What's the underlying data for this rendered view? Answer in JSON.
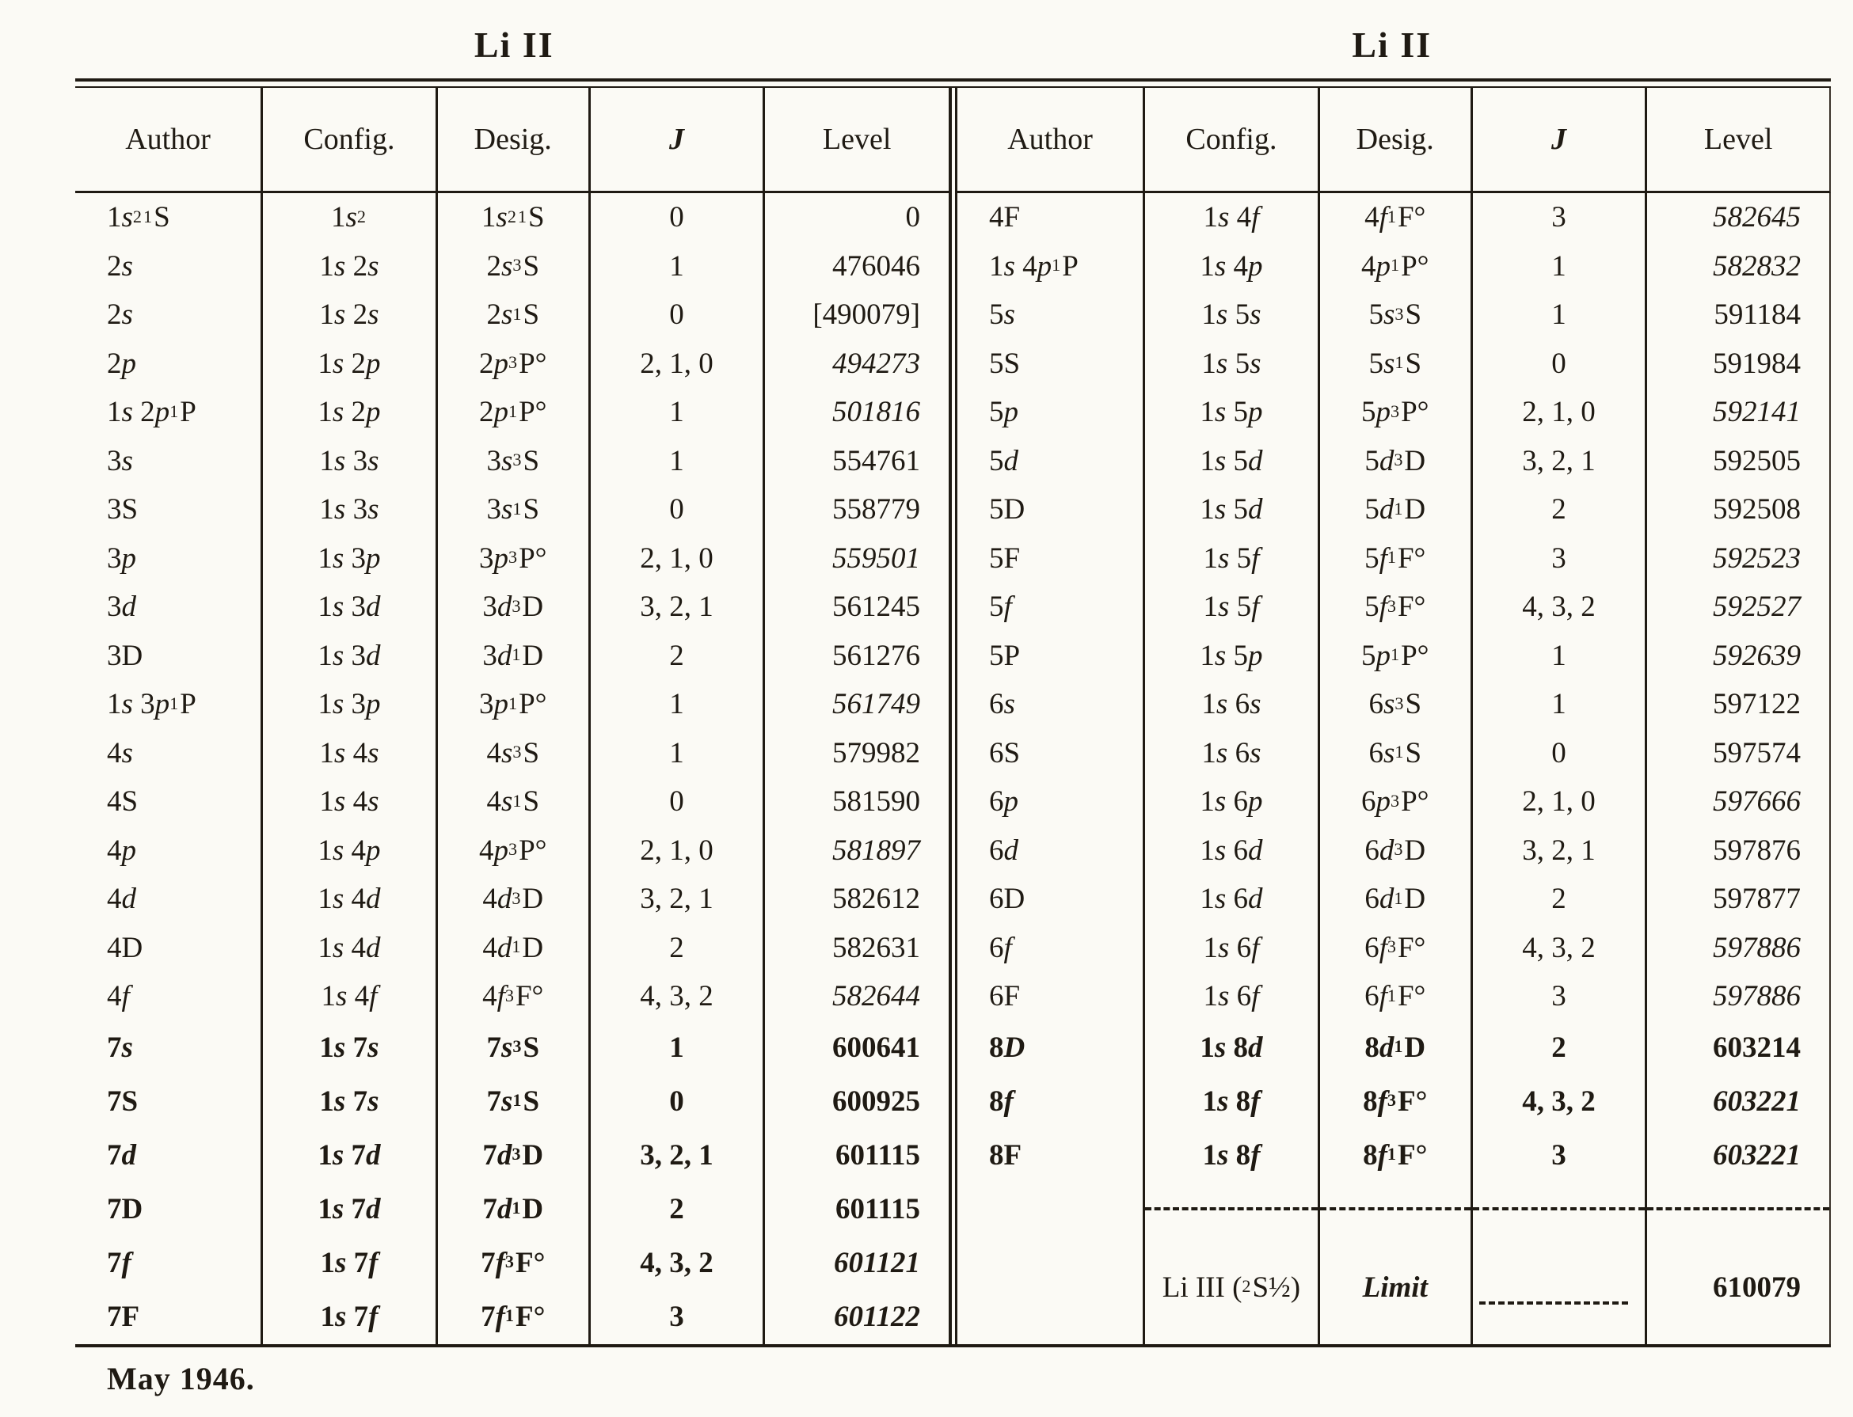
{
  "headers": [
    "Author",
    "Config.",
    "Desig.",
    "J",
    "Level"
  ],
  "tables": [
    {
      "title": "Li II",
      "rows": [
        [
          "1*s*^2^ ^1^S",
          "1*s*^2^",
          "1*s*^2^  ^1^S",
          "0",
          "0"
        ],
        [
          "2*s*",
          "1*s* 2*s*",
          "2*s*  ^3^S",
          "1",
          "476046"
        ],
        [
          "2*s*",
          "1*s* 2*s*",
          "2*s*  ^1^S",
          "0",
          "[490079]"
        ],
        [
          "2*p*",
          "1*s* 2*p*",
          "2*p*  ^3^P°",
          "2, 1, 0",
          "*494273*"
        ],
        [
          "1*s* 2*p* ^1^P",
          "1*s* 2*p*",
          "2*p*  ^1^P°",
          "1",
          "*501816*"
        ],
        [
          "3*s*",
          "1*s* 3*s*",
          "3*s*  ^3^S",
          "1",
          "554761"
        ],
        [
          "3S",
          "1*s* 3*s*",
          "3*s*  ^1^S",
          "0",
          "558779"
        ],
        [
          "3*p*",
          "1*s* 3*p*",
          "3*p*  ^3^P°",
          "2, 1, 0",
          "*559501*"
        ],
        [
          "3*d*",
          "1*s* 3*d*",
          "3*d*  ^3^D",
          "3, 2, 1",
          "561245"
        ],
        [
          "3D",
          "1*s* 3*d*",
          "3*d*  ^1^D",
          "2",
          "561276"
        ],
        [
          "1*s* 3*p* ^1^P",
          "1*s* 3*p*",
          "3*p*  ^1^P°",
          "1",
          "*561749*"
        ],
        [
          "4*s*",
          "1*s* 4*s*",
          "4*s*  ^3^S",
          "1",
          "579982"
        ],
        [
          "4S",
          "1*s* 4*s*",
          "4*s*  ^1^S",
          "0",
          "581590"
        ],
        [
          "4*p*",
          "1*s* 4*p*",
          "4*p*  ^3^P°",
          "2, 1, 0",
          "*581897*"
        ],
        [
          "4*d*",
          "1*s* 4*d*",
          "4*d*  ^3^D",
          "3, 2, 1",
          "582612"
        ],
        [
          "4D",
          "1*s* 4*d*",
          "4*d*  ^1^D",
          "2",
          "582631"
        ],
        [
          "4*f*",
          "1*s* 4*f*",
          "4*f*  ^3^F°",
          "4, 3, 2",
          "*582644*"
        ]
      ],
      "bold_rows": [
        [
          "7*s*",
          "1*s* 7*s*",
          "7*s*  ^3^S",
          "1",
          "600641"
        ],
        [
          "7S",
          "1*s* 7*s*",
          "7*s*  ^1^S",
          "0",
          "600925"
        ],
        [
          "7*d*",
          "1*s* 7*d*",
          "7*d*  ^3^D",
          "3, 2, 1",
          "601115"
        ],
        [
          "7D",
          "1*s* 7*d*",
          "7*d*  ^1^D",
          "2",
          "601115"
        ],
        [
          "7*f*",
          "1*s* 7*f*",
          "7*f*  ^3^F°",
          "4, 3, 2",
          "*601121*"
        ],
        [
          "7F",
          "1*s* 7*f*",
          "7*f*  ^1^F°",
          "3",
          "*601122*"
        ]
      ],
      "limit": null
    },
    {
      "title": "Li II",
      "rows": [
        [
          "4F",
          "1*s* 4*f*",
          "4*f*  ^1^F°",
          "3",
          "*582645*"
        ],
        [
          "1*s* 4*p* ^1^P",
          "1*s* 4*p*",
          "4*p*  ^1^P°",
          "1",
          "*582832*"
        ],
        [
          "5*s*",
          "1*s* 5*s*",
          "5*s*  ^3^S",
          "1",
          "591184"
        ],
        [
          "5S",
          "1*s* 5*s*",
          "5*s*  ^1^S",
          "0",
          "591984"
        ],
        [
          "5*p*",
          "1*s* 5*p*",
          "5*p*  ^3^P°",
          "2, 1, 0",
          "*592141*"
        ],
        [
          "5*d*",
          "1*s* 5*d*",
          "5*d*  ^3^D",
          "3, 2, 1",
          "592505"
        ],
        [
          "5D",
          "1*s* 5*d*",
          "5*d*  ^1^D",
          "2",
          "592508"
        ],
        [
          "5F",
          "1*s* 5*f*",
          "5*f*  ^1^F°",
          "3",
          "*592523*"
        ],
        [
          "5*f*",
          "1*s* 5*f*",
          "5*f*  ^3^F°",
          "4, 3, 2",
          "*592527*"
        ],
        [
          "5P",
          "1*s* 5*p*",
          "5*p*  ^1^P°",
          "1",
          "*592639*"
        ],
        [
          "6*s*",
          "1*s* 6*s*",
          "6*s*  ^3^S",
          "1",
          "597122"
        ],
        [
          "6S",
          "1*s* 6*s*",
          "6*s*  ^1^S",
          "0",
          "597574"
        ],
        [
          "6*p*",
          "1*s* 6*p*",
          "6*p*  ^3^P°",
          "2, 1, 0",
          "*597666*"
        ],
        [
          "6*d*",
          "1*s* 6*d*",
          "6*d*  ^3^D",
          "3, 2, 1",
          "597876"
        ],
        [
          "6D",
          "1*s* 6*d*",
          "6*d*  ^1^D",
          "2",
          "597877"
        ],
        [
          "6*f*",
          "1*s* 6*f*",
          "6*f*  ^3^F°",
          "4, 3, 2",
          "*597886*"
        ],
        [
          "6F",
          "1*s* 6*f*",
          "6*f*  ^1^F°",
          "3",
          "*597886*"
        ]
      ],
      "bold_rows": [
        [
          "8*D*",
          "1*s* 8*d*",
          "8*d*  ^1^D",
          "2",
          "603214"
        ],
        [
          "8*f*",
          "1*s* 8*f*",
          "8*f*  ^3^F°",
          "4, 3, 2",
          "*603221*"
        ],
        [
          "8F",
          "1*s* 8*f*",
          "8*f*  ^1^F°",
          "3",
          "*603221*"
        ]
      ],
      "limit": {
        "config": "Li III (^2^S½)",
        "desig": "*Limit*",
        "level": "610079"
      }
    }
  ],
  "footer": "May 1946."
}
